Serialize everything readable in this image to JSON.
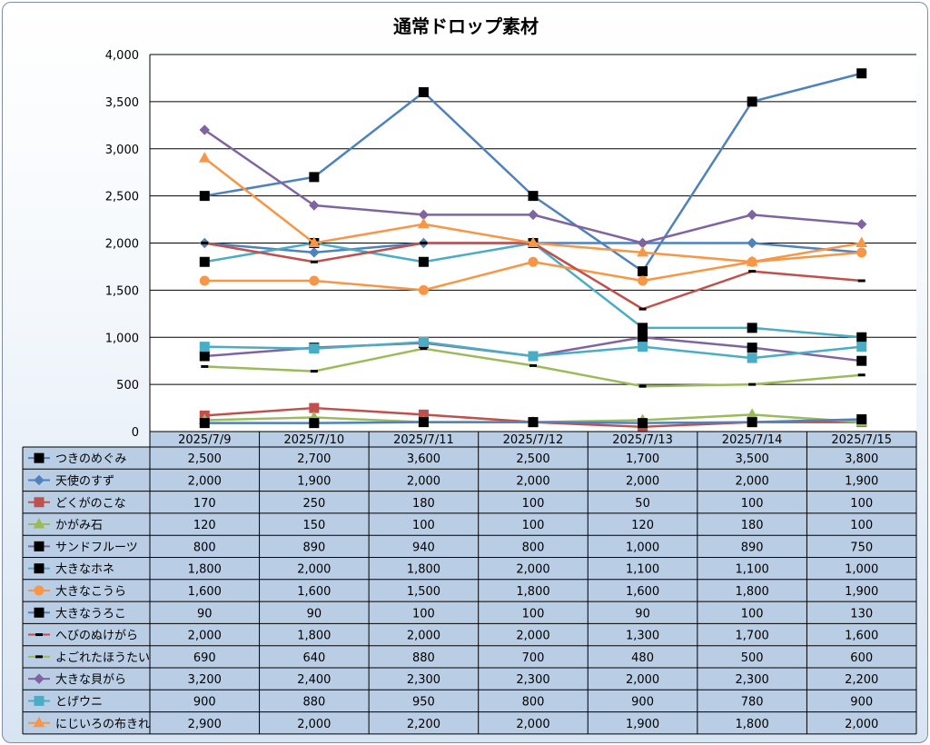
{
  "chart_data": {
    "type": "line",
    "title": "通常ドロップ素材",
    "xlabel": "",
    "ylabel": "",
    "ylim": [
      0,
      4000
    ],
    "yticks": [
      "0",
      "500",
      "1,000",
      "1,500",
      "2,000",
      "2,500",
      "3,000",
      "3,500",
      "4,000"
    ],
    "grid": true,
    "legend": "data-table",
    "categories": [
      "2025/7/9",
      "2025/7/10",
      "2025/7/11",
      "2025/7/12",
      "2025/7/13",
      "2025/7/14",
      "2025/7/15"
    ],
    "series": [
      {
        "name": "つきのめぐみ",
        "color": "#4f81bd",
        "marker": "square-black",
        "values": [
          2500,
          2700,
          3600,
          2500,
          1700,
          3500,
          3800
        ],
        "labels": [
          "2,500",
          "2,700",
          "3,600",
          "2,500",
          "1,700",
          "3,500",
          "3,800"
        ]
      },
      {
        "name": "天使のすず",
        "color": "#4f81bd",
        "marker": "diamond",
        "values": [
          2000,
          1900,
          2000,
          2000,
          2000,
          2000,
          1900
        ],
        "labels": [
          "2,000",
          "1,900",
          "2,000",
          "2,000",
          "2,000",
          "2,000",
          "1,900"
        ]
      },
      {
        "name": "どくがのこな",
        "color": "#c0504d",
        "marker": "square",
        "values": [
          170,
          250,
          180,
          100,
          50,
          100,
          100
        ],
        "labels": [
          "170",
          "250",
          "180",
          "100",
          "50",
          "100",
          "100"
        ]
      },
      {
        "name": "かがみ石",
        "color": "#9bbb59",
        "marker": "triangle",
        "values": [
          120,
          150,
          100,
          100,
          120,
          180,
          100
        ],
        "labels": [
          "120",
          "150",
          "100",
          "100",
          "120",
          "180",
          "100"
        ]
      },
      {
        "name": "サンドフルーツ",
        "color": "#8064a2",
        "marker": "square-black",
        "values": [
          800,
          890,
          940,
          800,
          1000,
          890,
          750
        ],
        "labels": [
          "800",
          "890",
          "940",
          "800",
          "1,000",
          "890",
          "750"
        ]
      },
      {
        "name": "大きなホネ",
        "color": "#4bacc6",
        "marker": "square-black",
        "values": [
          1800,
          2000,
          1800,
          2000,
          1100,
          1100,
          1000
        ],
        "labels": [
          "1,800",
          "2,000",
          "1,800",
          "2,000",
          "1,100",
          "1,100",
          "1,000"
        ]
      },
      {
        "name": "大きなこうら",
        "color": "#f79646",
        "marker": "circle",
        "values": [
          1600,
          1600,
          1500,
          1800,
          1600,
          1800,
          1900
        ],
        "labels": [
          "1,600",
          "1,600",
          "1,500",
          "1,800",
          "1,600",
          "1,800",
          "1,900"
        ]
      },
      {
        "name": "大きなうろこ",
        "color": "#4f81bd",
        "marker": "square-black",
        "values": [
          90,
          90,
          100,
          100,
          90,
          100,
          130
        ],
        "labels": [
          "90",
          "90",
          "100",
          "100",
          "90",
          "100",
          "130"
        ]
      },
      {
        "name": "へびのぬけがら",
        "color": "#c0504d",
        "marker": "dash-black",
        "values": [
          2000,
          1800,
          2000,
          2000,
          1300,
          1700,
          1600
        ],
        "labels": [
          "2,000",
          "1,800",
          "2,000",
          "2,000",
          "1,300",
          "1,700",
          "1,600"
        ]
      },
      {
        "name": "よごれたほうたい",
        "color": "#9bbb59",
        "marker": "dash-black",
        "values": [
          690,
          640,
          880,
          700,
          480,
          500,
          600
        ],
        "labels": [
          "690",
          "640",
          "880",
          "700",
          "480",
          "500",
          "600"
        ]
      },
      {
        "name": "大きな貝がら",
        "color": "#8064a2",
        "marker": "diamond",
        "values": [
          3200,
          2400,
          2300,
          2300,
          2000,
          2300,
          2200
        ],
        "labels": [
          "3,200",
          "2,400",
          "2,300",
          "2,300",
          "2,000",
          "2,300",
          "2,200"
        ]
      },
      {
        "name": "とげウニ",
        "color": "#4bacc6",
        "marker": "square",
        "values": [
          900,
          880,
          950,
          800,
          900,
          780,
          900
        ],
        "labels": [
          "900",
          "880",
          "950",
          "800",
          "900",
          "780",
          "900"
        ]
      },
      {
        "name": "にじいろの布きれ",
        "color": "#f79646",
        "marker": "triangle",
        "values": [
          2900,
          2000,
          2200,
          2000,
          1900,
          1800,
          2000
        ],
        "labels": [
          "2,900",
          "2,000",
          "2,200",
          "2,000",
          "1,900",
          "1,800",
          "2,000"
        ]
      }
    ]
  }
}
